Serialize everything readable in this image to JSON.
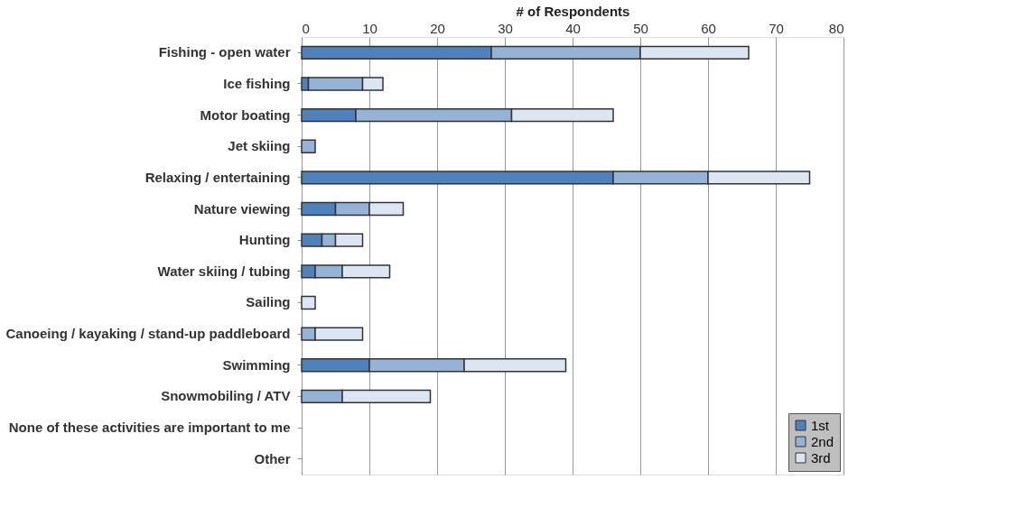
{
  "chart_data": {
    "type": "bar",
    "orientation": "horizontal",
    "stacked": true,
    "xlabel": "# of Respondents",
    "categories": [
      "Fishing - open water",
      "Ice fishing",
      "Motor boating",
      "Jet skiing",
      "Relaxing / entertaining",
      "Nature viewing",
      "Hunting",
      "Water skiing / tubing",
      "Sailing",
      "Canoeing / kayaking / stand-up paddleboard",
      "Swimming",
      "Snowmobiling / ATV",
      "None of these activities are important to me",
      "Other"
    ],
    "series": [
      {
        "name": "1st",
        "color": "#4f81bd",
        "values": [
          28,
          1,
          8,
          0,
          46,
          5,
          3,
          2,
          0,
          0,
          10,
          0,
          0,
          0
        ]
      },
      {
        "name": "2nd",
        "color": "#95b3d7",
        "values": [
          22,
          8,
          23,
          2,
          14,
          5,
          2,
          4,
          0,
          2,
          14,
          6,
          0,
          0
        ]
      },
      {
        "name": "3rd",
        "color": "#dce6f2",
        "values": [
          16,
          3,
          15,
          0,
          15,
          5,
          4,
          7,
          2,
          7,
          15,
          13,
          0,
          0
        ]
      }
    ],
    "xlim": [
      0,
      80
    ],
    "xticks": [
      0,
      10,
      20,
      30,
      40,
      50,
      60,
      70,
      80
    ],
    "grid": "x",
    "legend": "bottom right"
  }
}
